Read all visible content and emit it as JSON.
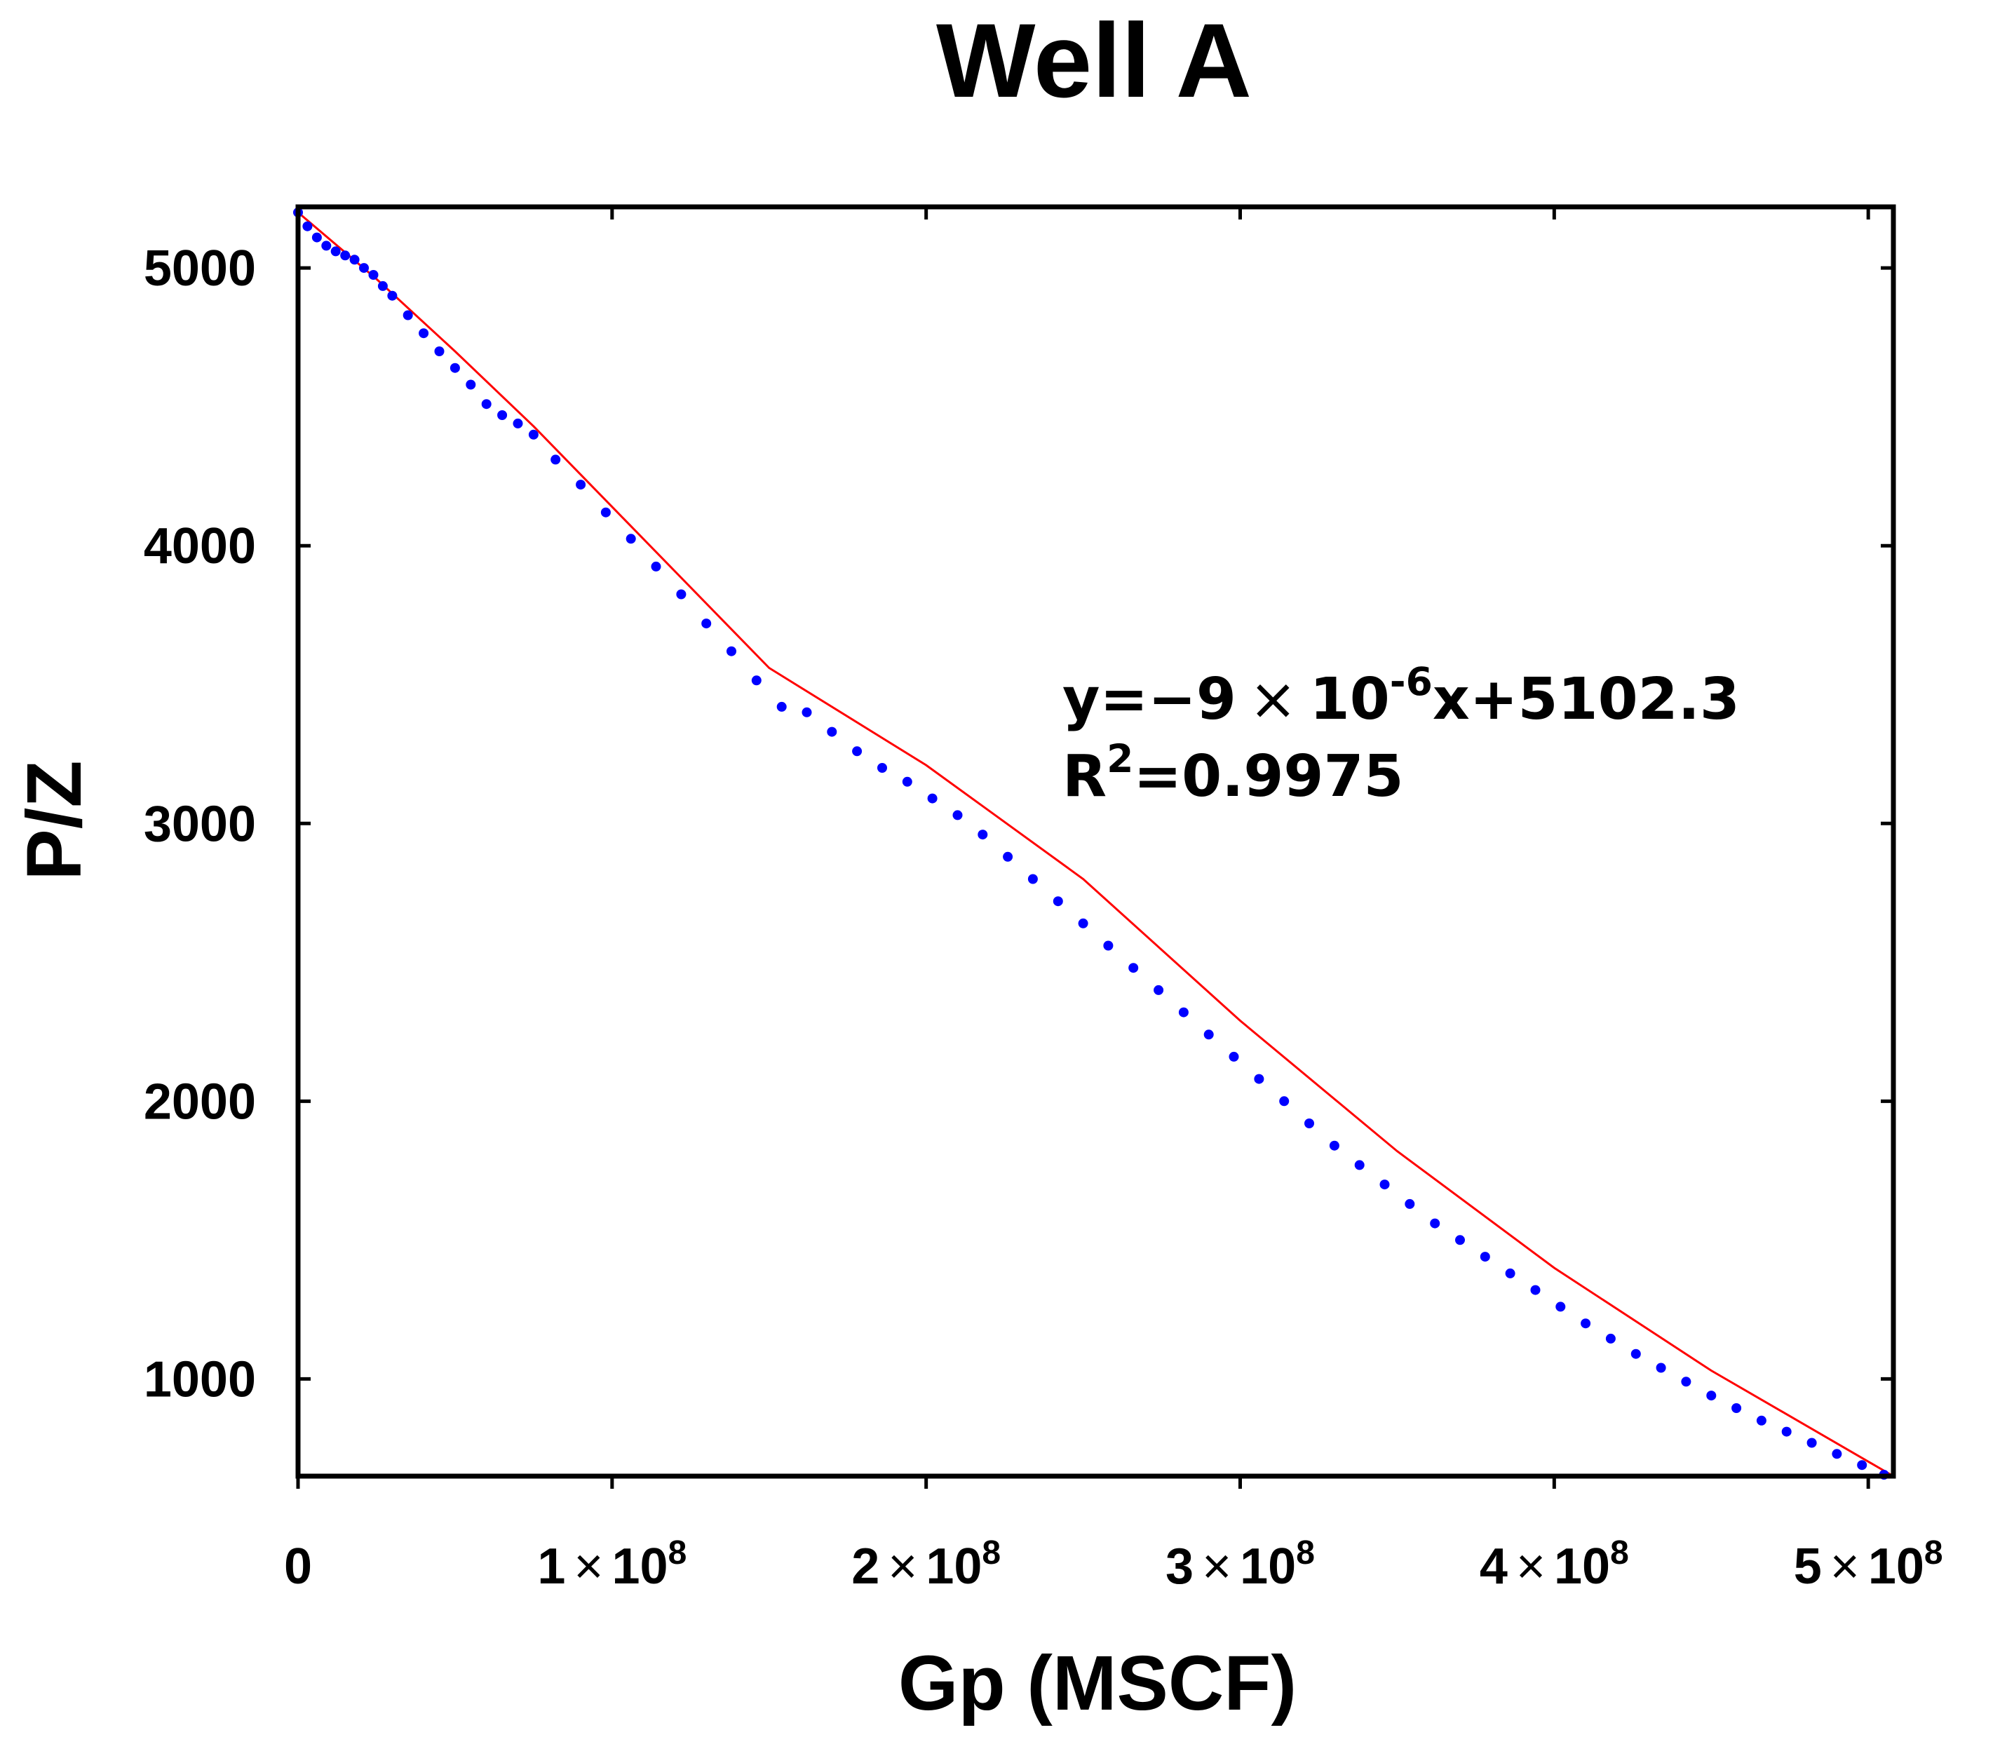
{
  "chart_data": {
    "type": "scatter",
    "title": "Well A",
    "xlabel": "Gp (MSCF)",
    "ylabel": "P/Z",
    "xlim": [
      0,
      508000000
    ],
    "ylim": [
      650,
      5220
    ],
    "grid": false,
    "x_ticks": [
      {
        "value": 0,
        "mantissa": "0",
        "times": "",
        "base": "",
        "exp": ""
      },
      {
        "value": 100000000,
        "mantissa": "1",
        "times": "×",
        "base": "10",
        "exp": "8"
      },
      {
        "value": 200000000,
        "mantissa": "2",
        "times": "×",
        "base": "10",
        "exp": "8"
      },
      {
        "value": 300000000,
        "mantissa": "3",
        "times": "×",
        "base": "10",
        "exp": "8"
      },
      {
        "value": 400000000,
        "mantissa": "4",
        "times": "×",
        "base": "10",
        "exp": "8"
      },
      {
        "value": 500000000,
        "mantissa": "5",
        "times": "×",
        "base": "10",
        "exp": "8"
      }
    ],
    "y_ticks": [
      {
        "value": 1000,
        "label": "1000"
      },
      {
        "value": 2000,
        "label": "2000"
      },
      {
        "value": 3000,
        "label": "3000"
      },
      {
        "value": 4000,
        "label": "4000"
      },
      {
        "value": 5000,
        "label": "5000"
      }
    ],
    "trend_curve": {
      "color": "#ff0000",
      "x": [
        0,
        25000000,
        50000000,
        75000000,
        100000000,
        150000000,
        200000000,
        250000000,
        300000000,
        350000000,
        400000000,
        450000000,
        508000000
      ],
      "y": [
        5200,
        4960,
        4700,
        4430,
        4140,
        3560,
        3210,
        2800,
        2290,
        1820,
        1400,
        1030,
        650
      ]
    },
    "series": [
      {
        "name": "P/Z data",
        "color": "#0000ff",
        "x": [
          0,
          3000000,
          6000000,
          9000000,
          12000000,
          15000000,
          18000000,
          21000000,
          24000000,
          27000000,
          30000000,
          35000000,
          40000000,
          45000000,
          50000000,
          55000000,
          60000000,
          65000000,
          70000000,
          75000000,
          82000000,
          90000000,
          98000000,
          106000000,
          114000000,
          122000000,
          130000000,
          138000000,
          146000000,
          154000000,
          162000000,
          170000000,
          178000000,
          186000000,
          194000000,
          202000000,
          210000000,
          218000000,
          226000000,
          234000000,
          242000000,
          250000000,
          258000000,
          266000000,
          274000000,
          282000000,
          290000000,
          298000000,
          306000000,
          314000000,
          322000000,
          330000000,
          338000000,
          346000000,
          354000000,
          362000000,
          370000000,
          378000000,
          386000000,
          394000000,
          402000000,
          410000000,
          418000000,
          426000000,
          434000000,
          442000000,
          450000000,
          458000000,
          466000000,
          474000000,
          482000000,
          490000000,
          498000000,
          505000000
        ],
        "y": [
          5200,
          5150,
          5110,
          5080,
          5060,
          5045,
          5030,
          5000,
          4975,
          4935,
          4900,
          4830,
          4765,
          4700,
          4640,
          4580,
          4510,
          4470,
          4440,
          4400,
          4310,
          4220,
          4120,
          4025,
          3925,
          3825,
          3720,
          3620,
          3515,
          3420,
          3400,
          3330,
          3260,
          3200,
          3150,
          3090,
          3030,
          2960,
          2880,
          2800,
          2720,
          2640,
          2560,
          2480,
          2400,
          2320,
          2240,
          2160,
          2080,
          2000,
          1920,
          1840,
          1770,
          1700,
          1630,
          1560,
          1500,
          1440,
          1380,
          1320,
          1260,
          1200,
          1145,
          1090,
          1040,
          990,
          940,
          895,
          850,
          810,
          770,
          730,
          690,
          655
        ]
      }
    ],
    "annotations": {
      "equation": {
        "lhs": "y=",
        "minus": "−",
        "coef": "9",
        "times": "×",
        "base": "10",
        "exp": "-6",
        "rest": "x+5102.3"
      },
      "r2": {
        "r": "R",
        "sup": "2",
        "rest": "=0.9975"
      }
    }
  }
}
